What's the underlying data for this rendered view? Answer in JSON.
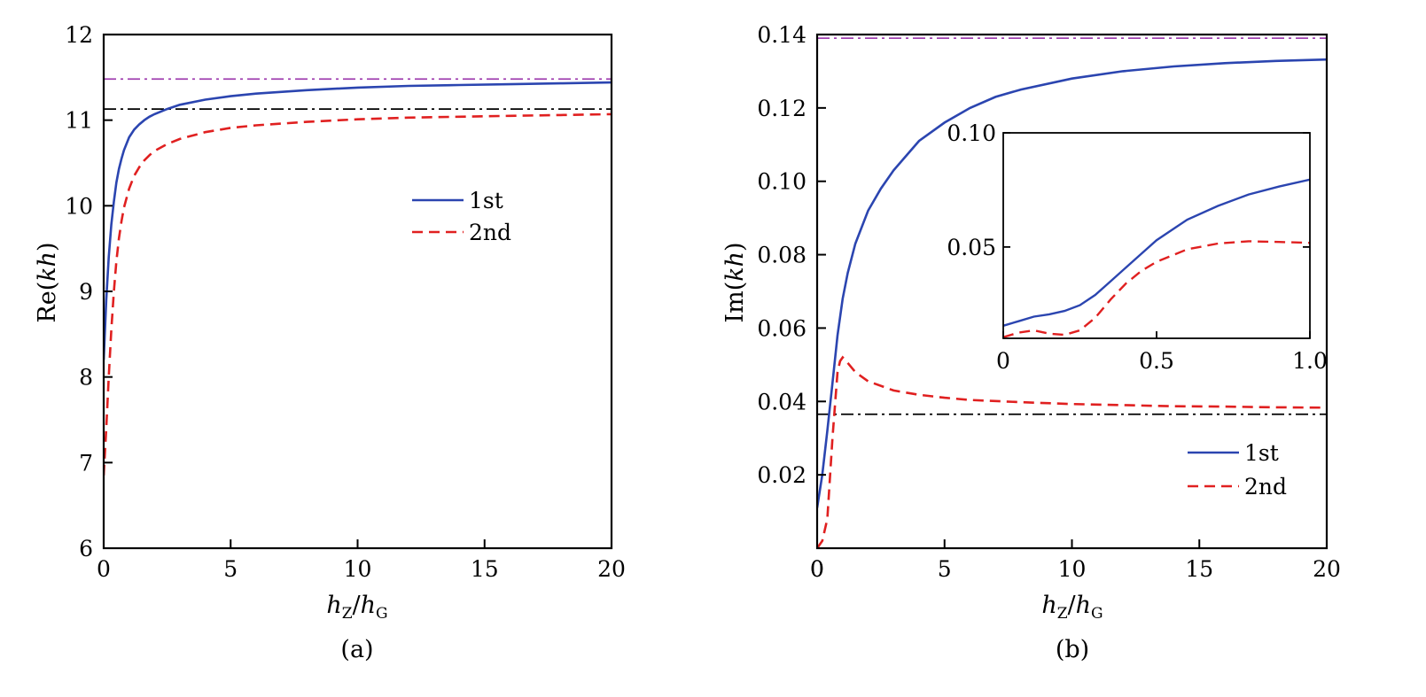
{
  "chart_data": [
    {
      "type": "line",
      "panel": "(a)",
      "ylabel": {
        "pre": "Re(",
        "var": "kh",
        "post": ")"
      },
      "xlabel": {
        "n": "h",
        "ns": "Z",
        "d": "h",
        "ds": "G"
      },
      "xlim": [
        0,
        20
      ],
      "ylim": [
        6,
        12
      ],
      "xticks": [
        "0",
        "5",
        "10",
        "15",
        "20"
      ],
      "yticks": [
        "6",
        "7",
        "8",
        "9",
        "10",
        "11",
        "12"
      ],
      "legend": {
        "position": "center-right"
      },
      "series": [
        {
          "name": "1st",
          "color": "#2b45b0",
          "dash": "solid",
          "x": [
            0,
            0.1,
            0.2,
            0.3,
            0.4,
            0.5,
            0.6,
            0.7,
            0.8,
            1.0,
            1.2,
            1.4,
            1.6,
            1.8,
            2.0,
            2.5,
            3.0,
            4.0,
            5.0,
            6.0,
            8.0,
            10.0,
            12.0,
            14.0,
            16.0,
            18.0,
            20.0
          ],
          "y": [
            8.2,
            8.9,
            9.4,
            9.78,
            10.05,
            10.27,
            10.43,
            10.55,
            10.65,
            10.8,
            10.89,
            10.95,
            11.0,
            11.04,
            11.07,
            11.13,
            11.18,
            11.24,
            11.28,
            11.31,
            11.35,
            11.38,
            11.4,
            11.41,
            11.42,
            11.43,
            11.44
          ]
        },
        {
          "name": "2nd",
          "color": "#e02020",
          "dash": "dashed",
          "x": [
            0,
            0.1,
            0.2,
            0.3,
            0.4,
            0.5,
            0.6,
            0.7,
            0.8,
            1.0,
            1.2,
            1.4,
            1.6,
            1.8,
            2.0,
            2.5,
            3.0,
            4.0,
            5.0,
            6.0,
            8.0,
            10.0,
            12.0,
            14.0,
            16.0,
            18.0,
            20.0
          ],
          "y": [
            6.85,
            7.4,
            8.0,
            8.55,
            9.0,
            9.35,
            9.62,
            9.82,
            9.98,
            10.2,
            10.35,
            10.45,
            10.53,
            10.59,
            10.64,
            10.72,
            10.78,
            10.86,
            10.91,
            10.94,
            10.98,
            11.01,
            11.03,
            11.04,
            11.05,
            11.06,
            11.07
          ]
        }
      ],
      "reference_lines": [
        {
          "y": 11.48,
          "color": "#a040b0",
          "dash": "dashdot"
        },
        {
          "y": 11.13,
          "color": "#000000",
          "dash": "dashdot"
        }
      ]
    },
    {
      "type": "line",
      "panel": "(b)",
      "ylabel": {
        "pre": "Im(",
        "var": "kh",
        "post": ")"
      },
      "xlabel": {
        "n": "h",
        "ns": "Z",
        "d": "h",
        "ds": "G"
      },
      "xlim": [
        0,
        20
      ],
      "ylim": [
        0,
        0.14
      ],
      "xticks": [
        "0",
        "5",
        "10",
        "15",
        "20"
      ],
      "yticks": [
        "0.02",
        "0.04",
        "0.06",
        "0.08",
        "0.10",
        "0.12",
        "0.14"
      ],
      "legend": {
        "position": "lower-right"
      },
      "series": [
        {
          "name": "1st",
          "color": "#2b45b0",
          "dash": "solid",
          "x": [
            0,
            0.2,
            0.4,
            0.6,
            0.8,
            1.0,
            1.2,
            1.5,
            2.0,
            2.5,
            3.0,
            4.0,
            5.0,
            6.0,
            7.0,
            8.0,
            10.0,
            12.0,
            14.0,
            16.0,
            18.0,
            20.0
          ],
          "y": [
            0.011,
            0.02,
            0.032,
            0.045,
            0.058,
            0.068,
            0.075,
            0.083,
            0.092,
            0.098,
            0.103,
            0.111,
            0.116,
            0.12,
            0.123,
            0.125,
            0.128,
            0.13,
            0.1313,
            0.1322,
            0.1328,
            0.1332
          ]
        },
        {
          "name": "2nd",
          "color": "#e02020",
          "dash": "dashed",
          "x": [
            0,
            0.2,
            0.4,
            0.6,
            0.8,
            0.9,
            1.0,
            1.2,
            1.5,
            2.0,
            3.0,
            4.0,
            5.0,
            6.0,
            8.0,
            10.0,
            12.0,
            14.0,
            16.0,
            18.0,
            20.0
          ],
          "y": [
            0.0,
            0.002,
            0.008,
            0.03,
            0.048,
            0.051,
            0.052,
            0.0505,
            0.048,
            0.0455,
            0.043,
            0.0418,
            0.041,
            0.0404,
            0.0398,
            0.0393,
            0.039,
            0.0387,
            0.0386,
            0.0384,
            0.0383
          ]
        }
      ],
      "reference_lines": [
        {
          "y": 0.139,
          "color": "#a040b0",
          "dash": "dashdot"
        },
        {
          "y": 0.0365,
          "color": "#000000",
          "dash": "dashdot"
        }
      ],
      "inset": {
        "xlim": [
          0,
          1.0
        ],
        "ylim": [
          0.01,
          0.1
        ],
        "xticks": [
          "0",
          "0.5",
          "1.0"
        ],
        "yticks": [
          "0.05",
          "0.10"
        ],
        "series": [
          {
            "name": "1st",
            "color": "#2b45b0",
            "dash": "solid",
            "x": [
              0,
              0.05,
              0.1,
              0.15,
              0.2,
              0.25,
              0.3,
              0.35,
              0.4,
              0.45,
              0.5,
              0.6,
              0.7,
              0.8,
              0.9,
              1.0
            ],
            "y": [
              0.0155,
              0.0175,
              0.0195,
              0.0205,
              0.022,
              0.0245,
              0.029,
              0.035,
              0.041,
              0.047,
              0.053,
              0.062,
              0.068,
              0.073,
              0.0765,
              0.0795
            ]
          },
          {
            "name": "2nd",
            "color": "#e02020",
            "dash": "dashed",
            "x": [
              0,
              0.05,
              0.1,
              0.15,
              0.2,
              0.25,
              0.3,
              0.35,
              0.4,
              0.45,
              0.5,
              0.6,
              0.7,
              0.8,
              0.9,
              1.0
            ],
            "y": [
              0.0105,
              0.0125,
              0.0135,
              0.012,
              0.0115,
              0.0135,
              0.019,
              0.027,
              0.034,
              0.0395,
              0.0435,
              0.049,
              0.0515,
              0.0525,
              0.0522,
              0.0518
            ]
          }
        ]
      }
    }
  ]
}
